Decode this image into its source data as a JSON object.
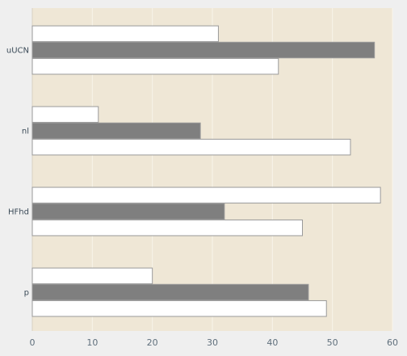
{
  "chart_data": {
    "type": "bar",
    "orientation": "horizontal",
    "categories": [
      "uUCN",
      "nl",
      "HFhd",
      "p"
    ],
    "series": [
      {
        "values": [
          31,
          11,
          58,
          20
        ],
        "color": "#ffffff"
      },
      {
        "values": [
          57,
          28,
          32,
          46
        ],
        "color": "#7f7f7f"
      },
      {
        "values": [
          41,
          53,
          45,
          49
        ],
        "color": "#ffffff"
      }
    ],
    "xlim": [
      0,
      60
    ],
    "xticks": [
      "0",
      "10",
      "20",
      "30",
      "40",
      "50",
      "60"
    ],
    "grid": true,
    "plot_background": "#efe7d6",
    "grid_color": "#f8f4ea",
    "bar_border": "#9a9a9a"
  }
}
